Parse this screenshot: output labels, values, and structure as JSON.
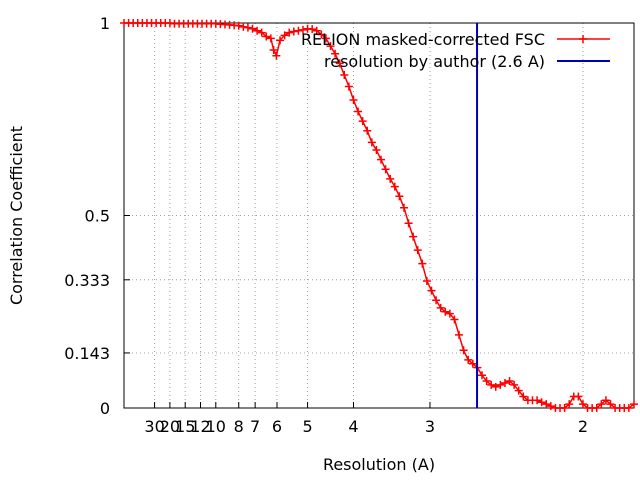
{
  "chart_data": {
    "type": "line",
    "xlabel": "Resolution (A)",
    "ylabel": "Correlation Coefficient",
    "x_unit": "1/Resolution (1/A)",
    "xlim": [
      0.0,
      0.5556
    ],
    "ylim": [
      0,
      1
    ],
    "grid": true,
    "grid_style": "dotted",
    "legend_position": "top-right",
    "x_ticks": [
      {
        "label": "30",
        "value": 0.03333
      },
      {
        "label": "20",
        "value": 0.05
      },
      {
        "label": "15",
        "value": 0.06667
      },
      {
        "label": "12",
        "value": 0.08333
      },
      {
        "label": "10",
        "value": 0.1
      },
      {
        "label": "8",
        "value": 0.125
      },
      {
        "label": "7",
        "value": 0.14286
      },
      {
        "label": "6",
        "value": 0.16667
      },
      {
        "label": "5",
        "value": 0.2
      },
      {
        "label": "4",
        "value": 0.25
      },
      {
        "label": "3",
        "value": 0.33333
      },
      {
        "label": "2",
        "value": 0.5
      }
    ],
    "y_ticks": [
      {
        "label": "0",
        "value": 0
      },
      {
        "label": "0.143",
        "value": 0.143
      },
      {
        "label": "0.333",
        "value": 0.333
      },
      {
        "label": "0.5",
        "value": 0.5
      },
      {
        "label": "1",
        "value": 1
      }
    ],
    "series": [
      {
        "name": "RELION masked-corrected FSC",
        "color": "#ff0000",
        "marker": "plus",
        "x": [
          0.0,
          0.005,
          0.01,
          0.015,
          0.02,
          0.025,
          0.03,
          0.035,
          0.04,
          0.045,
          0.05,
          0.055,
          0.06,
          0.065,
          0.07,
          0.075,
          0.08,
          0.085,
          0.09,
          0.095,
          0.1,
          0.105,
          0.11,
          0.115,
          0.12,
          0.125,
          0.13,
          0.135,
          0.14,
          0.145,
          0.15,
          0.155,
          0.16,
          0.163,
          0.166,
          0.17,
          0.175,
          0.18,
          0.185,
          0.19,
          0.195,
          0.2,
          0.205,
          0.21,
          0.215,
          0.22,
          0.225,
          0.23,
          0.235,
          0.24,
          0.245,
          0.25,
          0.255,
          0.26,
          0.265,
          0.27,
          0.275,
          0.28,
          0.285,
          0.29,
          0.295,
          0.3,
          0.305,
          0.31,
          0.315,
          0.32,
          0.325,
          0.33,
          0.335,
          0.34,
          0.345,
          0.35,
          0.355,
          0.36,
          0.365,
          0.37,
          0.375,
          0.38,
          0.385,
          0.39,
          0.395,
          0.4,
          0.405,
          0.41,
          0.415,
          0.42,
          0.425,
          0.43,
          0.435,
          0.44,
          0.445,
          0.45,
          0.455,
          0.46,
          0.465,
          0.47,
          0.475,
          0.48,
          0.485,
          0.49,
          0.495,
          0.5,
          0.505,
          0.51,
          0.515,
          0.52,
          0.525,
          0.53,
          0.535,
          0.54,
          0.545,
          0.55,
          0.5556
        ],
        "y": [
          1.0,
          1.0,
          1.0,
          1.0,
          1.0,
          1.0,
          1.0,
          1.0,
          1.0,
          1.0,
          1.0,
          0.998,
          0.998,
          0.998,
          0.998,
          0.998,
          0.998,
          0.998,
          0.998,
          0.998,
          0.998,
          0.997,
          0.996,
          0.995,
          0.994,
          0.993,
          0.99,
          0.988,
          0.985,
          0.98,
          0.975,
          0.965,
          0.96,
          0.93,
          0.915,
          0.955,
          0.968,
          0.975,
          0.978,
          0.98,
          0.982,
          0.985,
          0.984,
          0.98,
          0.97,
          0.96,
          0.94,
          0.92,
          0.895,
          0.865,
          0.835,
          0.8,
          0.77,
          0.745,
          0.72,
          0.69,
          0.67,
          0.645,
          0.62,
          0.595,
          0.575,
          0.55,
          0.52,
          0.48,
          0.445,
          0.41,
          0.375,
          0.33,
          0.305,
          0.28,
          0.26,
          0.25,
          0.245,
          0.23,
          0.19,
          0.15,
          0.125,
          0.115,
          0.105,
          0.085,
          0.07,
          0.06,
          0.055,
          0.06,
          0.065,
          0.07,
          0.06,
          0.045,
          0.03,
          0.02,
          0.02,
          0.02,
          0.015,
          0.01,
          0.005,
          0.0,
          0.0,
          0.0,
          0.01,
          0.03,
          0.03,
          0.01,
          0.0,
          0.0,
          0.0,
          0.01,
          0.02,
          0.01,
          0.0,
          0.0,
          0.0,
          0.0,
          0.01
        ]
      },
      {
        "name": "resolution by author (2.6 A)",
        "color": "#0000bb",
        "marker": "none",
        "vertical_line_x": 0.3846
      }
    ]
  }
}
